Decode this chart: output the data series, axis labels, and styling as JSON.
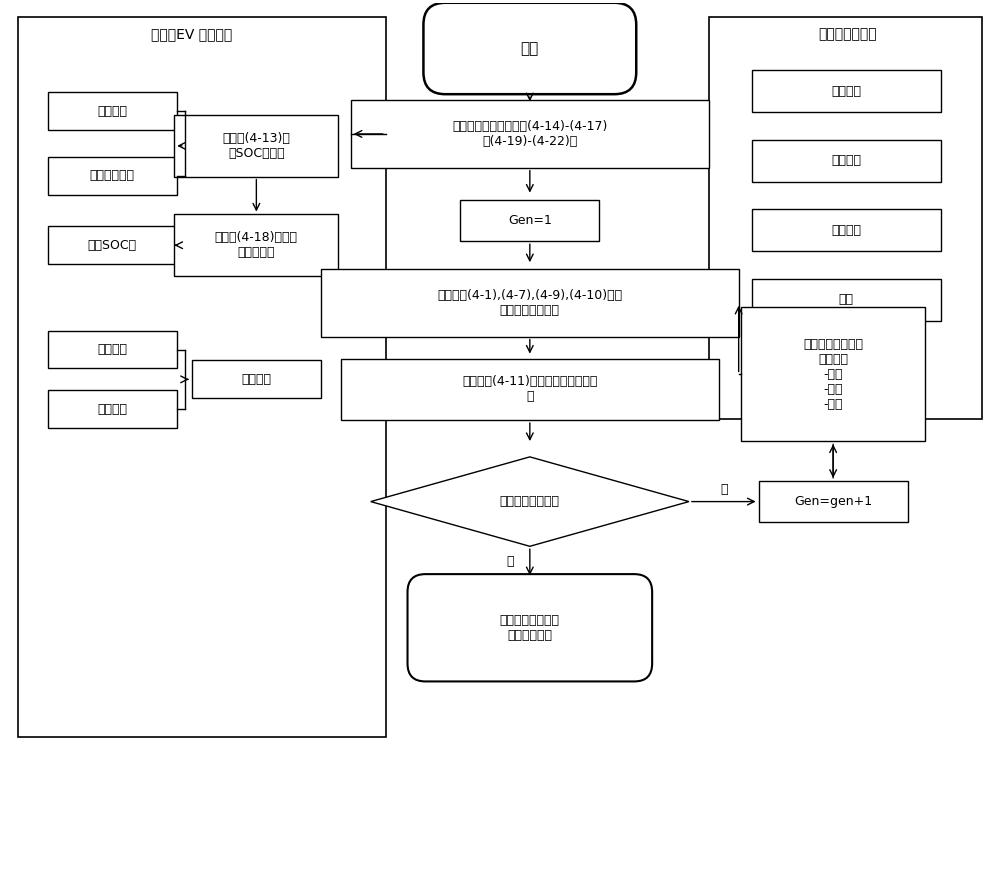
{
  "bg_color": "#ffffff",
  "line_color": "#000000",
  "text_color": "#000000",
  "left_box_title": "输入：EV 旅程数据",
  "right_box_title": "输入：区域信息",
  "calc_soc": "用公式(4-13)计\n算SOC初始值",
  "calc_charge": "用公式(4-18)计算最\n小充电时间",
  "stay_interval": "停留区间",
  "label_jiasulicheng": "驾驶里程",
  "label_diandong": "电动汽车模型",
  "label_mubiao": "目标SOC值",
  "label_daoda": "到达时间",
  "label_likai": "离开时间",
  "right_inputs": [
    "网络拓扑",
    "基础负荷",
    "环境温度",
    "电价"
  ],
  "start_text": "开始",
  "init_text": "初始化种群在约束条件(4-14)-(4-17)\n和(4-19)-(4-22)下",
  "gen1_text": "Gen=1",
  "calc_cost_text": "计算公式(4-1),(4-7),(4-9),(4-10)中每\n个个体的成本函数",
  "eval_text": "评估公式(4-11)每个个体的适应度函\n数",
  "stop_cond_text": "是否满足停止条件",
  "new_pop_text": "新的种群通过以下\n操作产生\n-交叉\n-突变\n-选择",
  "gen_incr_text": "Gen=gen+1",
  "yes_text": "是",
  "no_text": "否",
  "result_text": "电动汽车充电调度\n约束的最优解"
}
